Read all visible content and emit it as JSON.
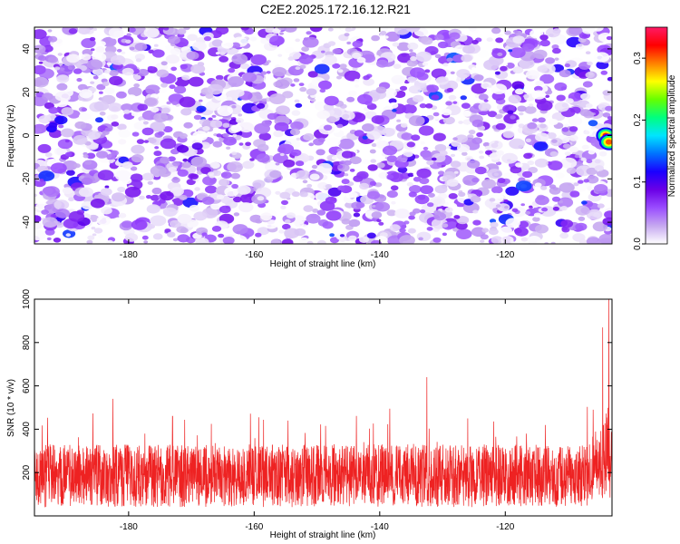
{
  "figure": {
    "title": "C2E2.2025.172.16.12.R21"
  },
  "chart_data": [
    {
      "type": "heatmap",
      "title": "C2E2.2025.172.16.12.R21",
      "xlabel": "Height of straight line (km)",
      "ylabel": "Frequency (Hz)",
      "xlim": [
        -195,
        -103
      ],
      "ylim": [
        -50,
        50
      ],
      "x_ticks": [
        -180,
        -160,
        -140,
        -120
      ],
      "y_ticks": [
        -40,
        -20,
        0,
        20,
        40
      ],
      "colorbar": {
        "label": "Normalized spectral amplitude",
        "range": [
          0.0,
          0.35
        ],
        "ticks": [
          0.0,
          0.1,
          0.2,
          0.3
        ],
        "colormap": [
          "#ffffff",
          "#c6a8f0",
          "#9a4dff",
          "#6b00e6",
          "#1a00ff",
          "#0073ff",
          "#00e5ff",
          "#00ff7f",
          "#66ff00",
          "#ffff00",
          "#ff8000",
          "#ff0000",
          "#ff1a66"
        ]
      },
      "background_level": "0.0-0.08 (noise field, mostly purple/violet)",
      "hotspots": [
        {
          "x": -104,
          "y": 0,
          "value": 0.33
        },
        {
          "x": -103.5,
          "y": -3,
          "value": 0.3
        }
      ],
      "grid": false
    },
    {
      "type": "line",
      "xlabel": "Height of straight line (km)",
      "ylabel": "SNR (10 * v/v)",
      "xlim": [
        -195,
        -103
      ],
      "ylim": [
        0,
        1000
      ],
      "x_ticks": [
        -180,
        -160,
        -140,
        -120
      ],
      "y_ticks": [
        200,
        400,
        600,
        800,
        1000
      ],
      "series_color": "#ee2222",
      "typical_range": [
        40,
        330
      ],
      "spikes": [
        {
          "x": -182.5,
          "y": 540
        },
        {
          "x": -173,
          "y": 460
        },
        {
          "x": -132.5,
          "y": 640
        },
        {
          "x": -106,
          "y": 490
        },
        {
          "x": -104.5,
          "y": 870
        },
        {
          "x": -103.5,
          "y": 1000
        }
      ],
      "grid": false
    }
  ]
}
